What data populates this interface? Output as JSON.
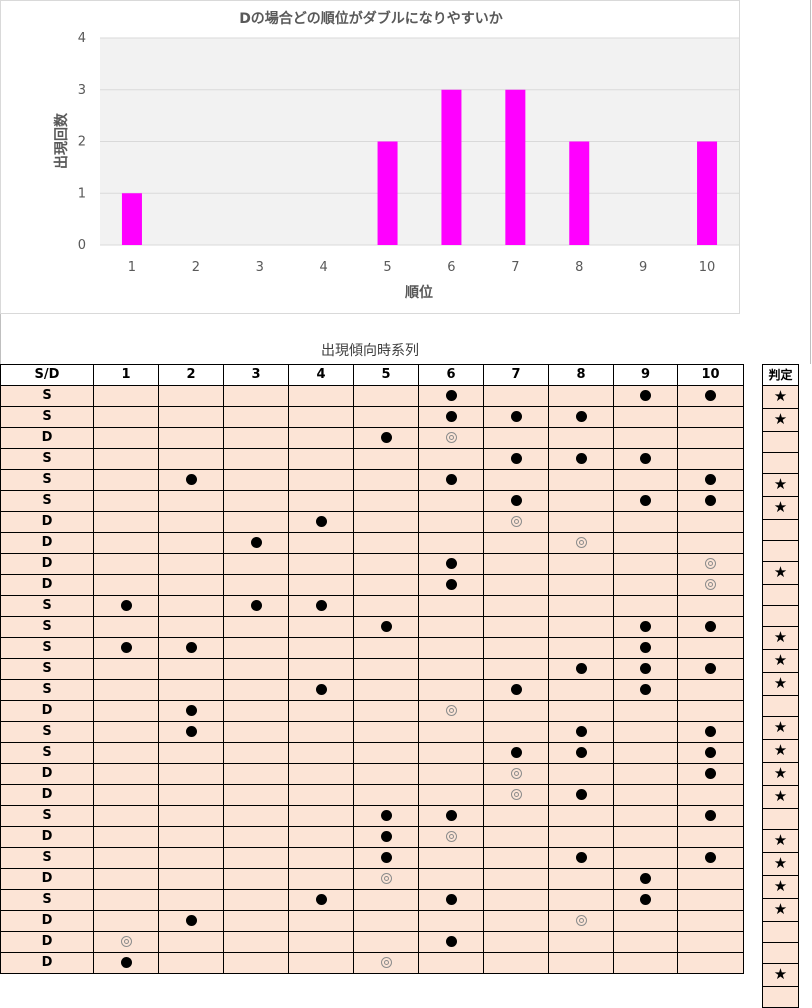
{
  "chart_data": {
    "type": "bar",
    "title": "Dの場合どの順位がダブルになりやすいか",
    "xlabel": "順位",
    "ylabel": "出現回数",
    "categories": [
      "1",
      "2",
      "3",
      "4",
      "5",
      "6",
      "7",
      "8",
      "9",
      "10"
    ],
    "values": [
      1,
      0,
      0,
      0,
      2,
      3,
      3,
      2,
      0,
      2
    ],
    "ylim": [
      0,
      4
    ],
    "yticks": [
      "0",
      "1",
      "2",
      "3",
      "4"
    ],
    "bar_color": "#ff00ff",
    "plot_bg": "#f2f2f2",
    "grid": true
  },
  "table": {
    "title": "出現傾向時系列",
    "headers": [
      "S/D",
      "1",
      "2",
      "3",
      "4",
      "5",
      "6",
      "7",
      "8",
      "9",
      "10"
    ],
    "judge_header": "判定",
    "star_symbol": "★",
    "rows": [
      {
        "sd": "S",
        "marks": [
          "",
          "",
          "",
          "",
          "",
          "dot",
          "",
          "",
          "dot",
          "dot"
        ],
        "judge": true
      },
      {
        "sd": "S",
        "marks": [
          "",
          "",
          "",
          "",
          "",
          "dot",
          "dot",
          "dot",
          "",
          ""
        ],
        "judge": true
      },
      {
        "sd": "D",
        "marks": [
          "",
          "",
          "",
          "",
          "dot",
          "ring",
          "",
          "",
          "",
          ""
        ],
        "judge": false
      },
      {
        "sd": "S",
        "marks": [
          "",
          "",
          "",
          "",
          "",
          "",
          "dot",
          "dot",
          "dot",
          ""
        ],
        "judge": false
      },
      {
        "sd": "S",
        "marks": [
          "",
          "dot",
          "",
          "",
          "",
          "dot",
          "",
          "",
          "",
          "dot"
        ],
        "judge": true
      },
      {
        "sd": "S",
        "marks": [
          "",
          "",
          "",
          "",
          "",
          "",
          "dot",
          "",
          "dot",
          "dot"
        ],
        "judge": true
      },
      {
        "sd": "D",
        "marks": [
          "",
          "",
          "",
          "dot",
          "",
          "",
          "ring",
          "",
          "",
          ""
        ],
        "judge": false
      },
      {
        "sd": "D",
        "marks": [
          "",
          "",
          "dot",
          "",
          "",
          "",
          "",
          "ring",
          "",
          ""
        ],
        "judge": false
      },
      {
        "sd": "D",
        "marks": [
          "",
          "",
          "",
          "",
          "",
          "dot",
          "",
          "",
          "",
          "ring"
        ],
        "judge": true
      },
      {
        "sd": "D",
        "marks": [
          "",
          "",
          "",
          "",
          "",
          "dot",
          "",
          "",
          "",
          "ring"
        ],
        "judge": false
      },
      {
        "sd": "S",
        "marks": [
          "dot",
          "",
          "dot",
          "dot",
          "",
          "",
          "",
          "",
          "",
          ""
        ],
        "judge": false
      },
      {
        "sd": "S",
        "marks": [
          "",
          "",
          "",
          "",
          "dot",
          "",
          "",
          "",
          "dot",
          "dot"
        ],
        "judge": true
      },
      {
        "sd": "S",
        "marks": [
          "dot",
          "dot",
          "",
          "",
          "",
          "",
          "",
          "",
          "dot",
          ""
        ],
        "judge": true
      },
      {
        "sd": "S",
        "marks": [
          "",
          "",
          "",
          "",
          "",
          "",
          "",
          "dot",
          "dot",
          "dot"
        ],
        "judge": true
      },
      {
        "sd": "S",
        "marks": [
          "",
          "",
          "",
          "dot",
          "",
          "",
          "dot",
          "",
          "dot",
          ""
        ],
        "judge": false
      },
      {
        "sd": "D",
        "marks": [
          "",
          "dot",
          "",
          "",
          "",
          "ring",
          "",
          "",
          "",
          ""
        ],
        "judge": true
      },
      {
        "sd": "S",
        "marks": [
          "",
          "dot",
          "",
          "",
          "",
          "",
          "",
          "dot",
          "",
          "dot"
        ],
        "judge": true
      },
      {
        "sd": "S",
        "marks": [
          "",
          "",
          "",
          "",
          "",
          "",
          "dot",
          "dot",
          "",
          "dot"
        ],
        "judge": true
      },
      {
        "sd": "D",
        "marks": [
          "",
          "",
          "",
          "",
          "",
          "",
          "ring",
          "",
          "",
          "dot"
        ],
        "judge": true
      },
      {
        "sd": "D",
        "marks": [
          "",
          "",
          "",
          "",
          "",
          "",
          "ring",
          "dot",
          "",
          ""
        ],
        "judge": false
      },
      {
        "sd": "S",
        "marks": [
          "",
          "",
          "",
          "",
          "dot",
          "dot",
          "",
          "",
          "",
          "dot"
        ],
        "judge": true
      },
      {
        "sd": "D",
        "marks": [
          "",
          "",
          "",
          "",
          "dot",
          "ring",
          "",
          "",
          "",
          ""
        ],
        "judge": true
      },
      {
        "sd": "S",
        "marks": [
          "",
          "",
          "",
          "",
          "dot",
          "",
          "",
          "dot",
          "",
          "dot"
        ],
        "judge": true
      },
      {
        "sd": "D",
        "marks": [
          "",
          "",
          "",
          "",
          "ring",
          "",
          "",
          "",
          "dot",
          ""
        ],
        "judge": true
      },
      {
        "sd": "S",
        "marks": [
          "",
          "",
          "",
          "dot",
          "",
          "dot",
          "",
          "",
          "dot",
          ""
        ],
        "judge": false
      },
      {
        "sd": "D",
        "marks": [
          "",
          "dot",
          "",
          "",
          "",
          "",
          "",
          "ring",
          "",
          ""
        ],
        "judge": false
      },
      {
        "sd": "D",
        "marks": [
          "ring",
          "",
          "",
          "",
          "",
          "dot",
          "",
          "",
          "",
          ""
        ],
        "judge": true
      },
      {
        "sd": "D",
        "marks": [
          "dot",
          "",
          "",
          "",
          "ring",
          "",
          "",
          "",
          "",
          ""
        ],
        "judge": false
      }
    ]
  }
}
